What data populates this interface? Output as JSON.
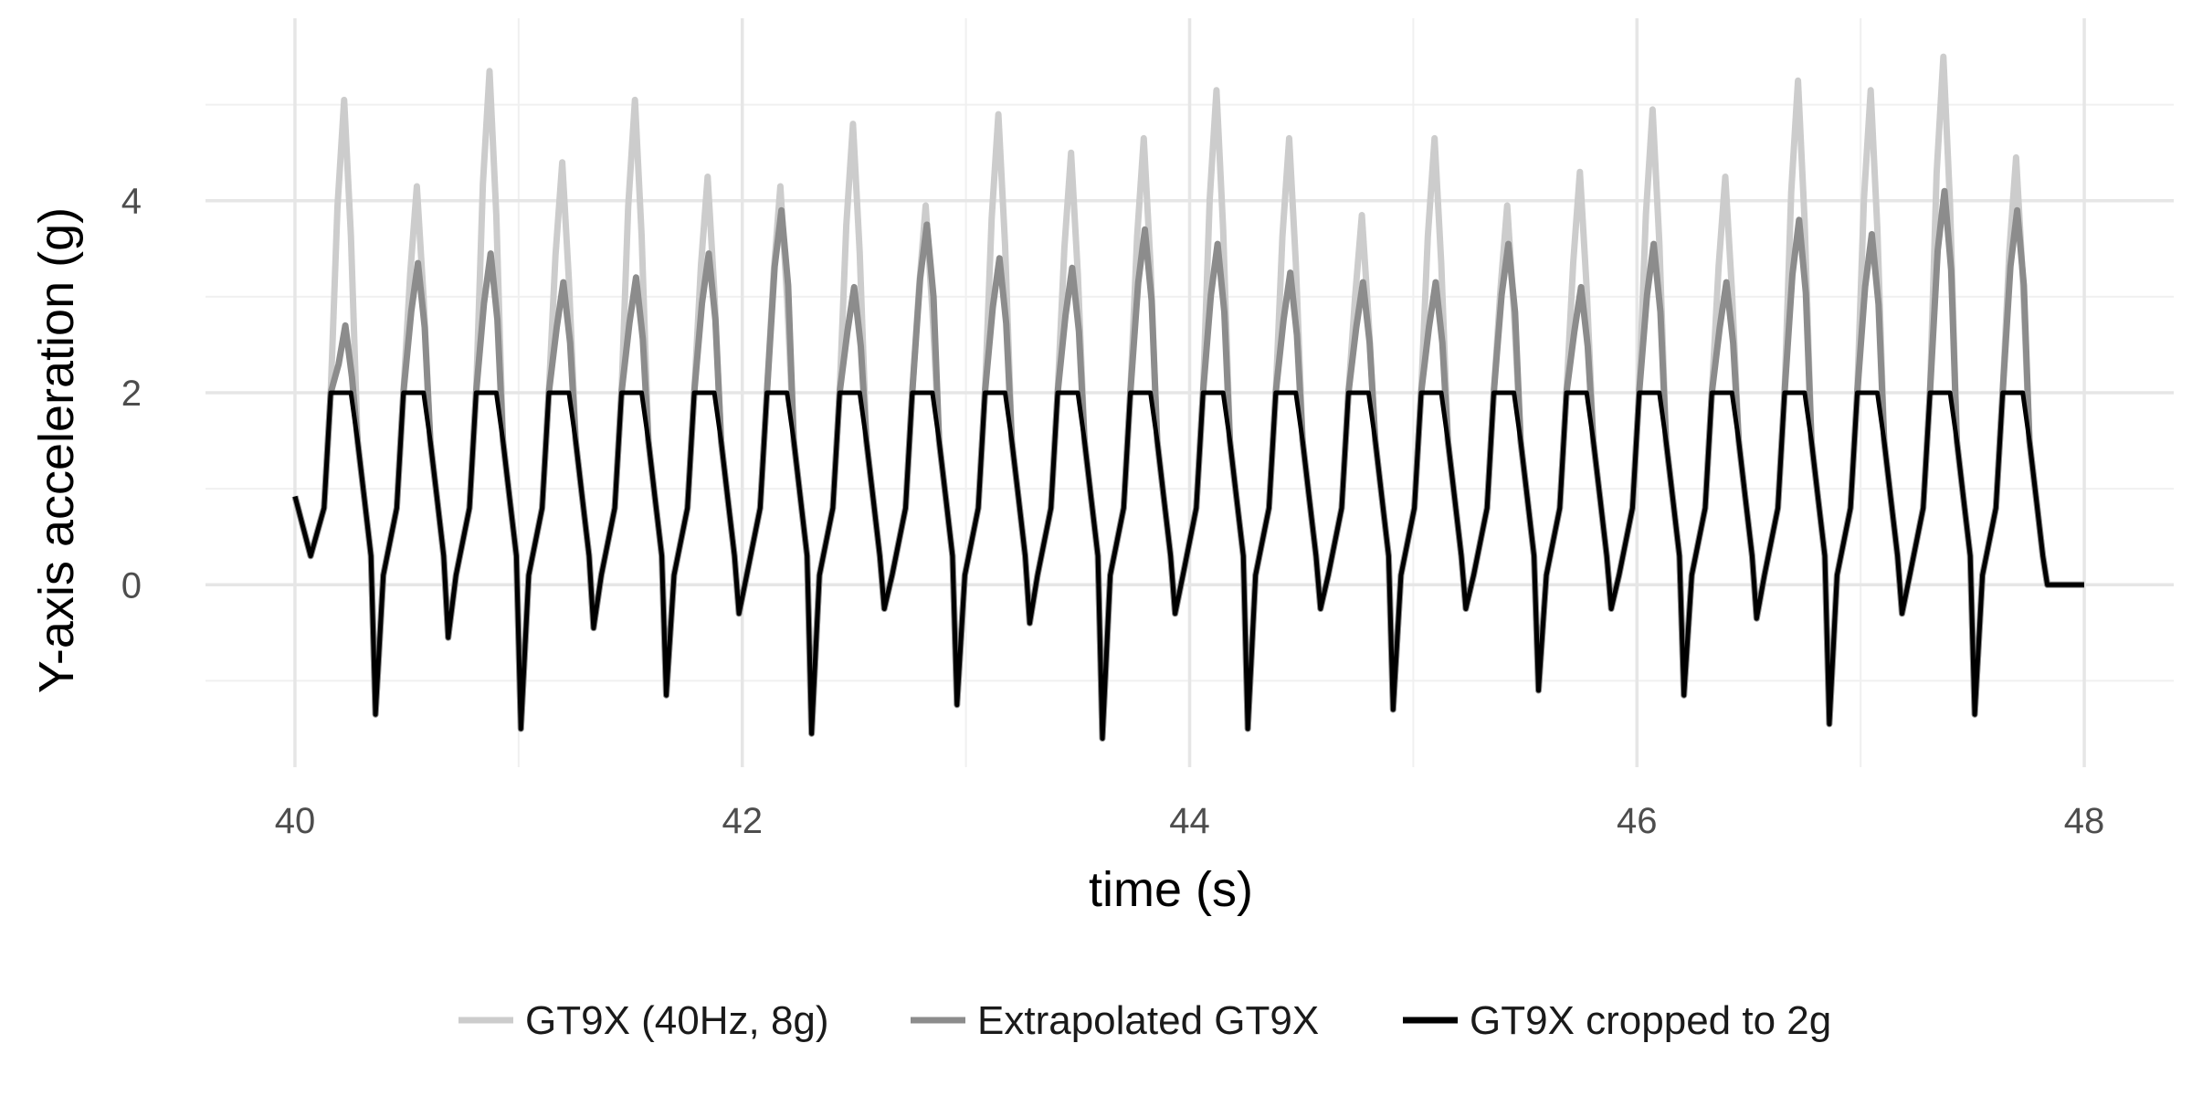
{
  "chart_data": {
    "type": "line",
    "title": "",
    "xlabel": "time (s)",
    "ylabel": "Y-axis acceleration (g)",
    "xlim": [
      39.6,
      48.4
    ],
    "ylim": [
      -1.9,
      5.9
    ],
    "x_ticks": [
      40,
      42,
      44,
      46,
      48
    ],
    "y_ticks": [
      0,
      2,
      4
    ],
    "x_minor": [
      41,
      43,
      45,
      47
    ],
    "y_minor": [
      -1,
      1,
      3,
      5
    ],
    "grid": true,
    "legend_position": "bottom",
    "period_s": 0.325,
    "cycle_start_s": 40.05,
    "cycle_peaks_raw": [
      5.05,
      4.15,
      5.35,
      4.4,
      5.05,
      4.25,
      4.15,
      4.8,
      3.95,
      4.9,
      4.5,
      4.65,
      5.15,
      4.65,
      3.85,
      4.65,
      3.95,
      4.3,
      4.95,
      4.25,
      5.25,
      5.15,
      5.5,
      4.45
    ],
    "cycle_peaks_extrapolated": [
      2.7,
      3.35,
      3.45,
      3.15,
      3.2,
      3.45,
      3.9,
      3.1,
      3.75,
      3.4,
      3.3,
      3.7,
      3.55,
      3.25,
      3.15,
      3.15,
      3.55,
      3.1,
      3.55,
      3.15,
      3.8,
      3.65,
      4.1,
      3.9
    ],
    "cycle_troughs": [
      -1.35,
      -0.55,
      -1.5,
      -0.45,
      -1.15,
      -0.3,
      -1.55,
      -0.25,
      -1.25,
      -0.4,
      -1.6,
      -0.3,
      -1.5,
      -0.25,
      -1.3,
      -0.25,
      -1.1,
      -0.25,
      -1.15,
      -0.35,
      -1.45,
      -0.3,
      -1.35,
      0.0
    ],
    "start_value": 0.92,
    "end_x": 48.0,
    "end_value": 0.0,
    "crop_limit": 2.0,
    "series": [
      {
        "name": "GT9X (40Hz, 8g)",
        "color": "#cccccc"
      },
      {
        "name": "Extrapolated GT9X",
        "color": "#8c8c8c"
      },
      {
        "name": "GT9X cropped to 2g",
        "color": "#000000"
      }
    ]
  }
}
